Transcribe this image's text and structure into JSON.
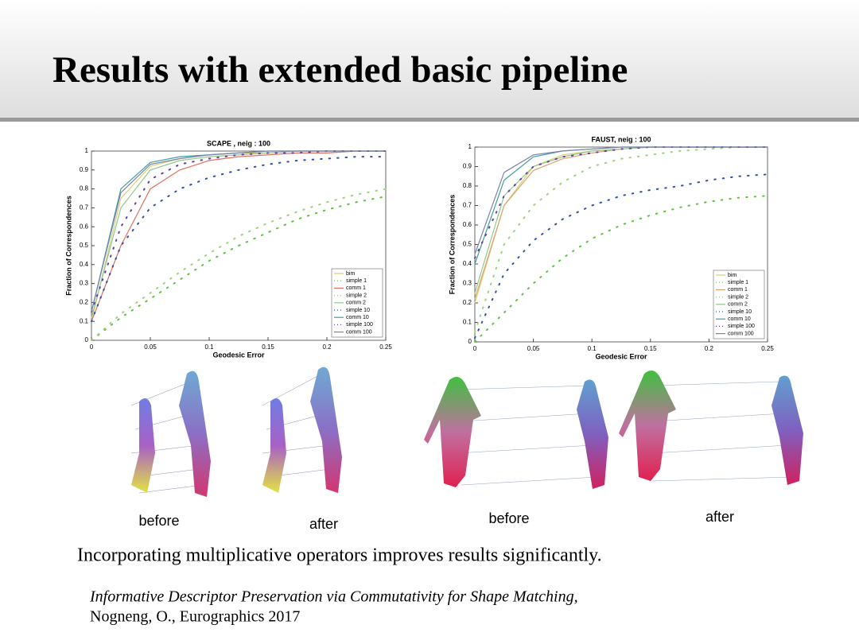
{
  "title": "Results with extended basic pipeline",
  "chart_data": [
    {
      "type": "line",
      "title": "SCAPE , neig : 100",
      "x_label": "Geodesic Error",
      "y_label": "Fraction of Correspondences",
      "x": [
        0,
        0.025,
        0.05,
        0.075,
        0.1,
        0.125,
        0.15,
        0.175,
        0.2,
        0.225,
        0.25
      ],
      "xlim": [
        0,
        0.25
      ],
      "xticks": [
        0,
        0.05,
        0.1,
        0.15,
        0.2,
        0.25
      ],
      "ylim": [
        0,
        1
      ],
      "yticks": [
        0,
        0.1,
        0.2,
        0.3,
        0.4,
        0.5,
        0.6,
        0.7,
        0.8,
        0.9,
        1
      ],
      "series": [
        {
          "name": "bim",
          "color": "#d8d070",
          "style": "solid",
          "values": [
            0.1,
            0.75,
            0.92,
            0.96,
            0.98,
            0.99,
            0.99,
            1,
            1,
            1,
            1
          ]
        },
        {
          "name": "simple 1",
          "color": "#60c040",
          "style": "dotted",
          "values": [
            0,
            0.12,
            0.22,
            0.32,
            0.42,
            0.5,
            0.57,
            0.64,
            0.69,
            0.73,
            0.76
          ]
        },
        {
          "name": "comm 1",
          "color": "#e07060",
          "style": "solid",
          "values": [
            0.1,
            0.5,
            0.8,
            0.9,
            0.95,
            0.97,
            0.98,
            0.99,
            0.99,
            1,
            1
          ]
        },
        {
          "name": "simple 2",
          "color": "#a0d080",
          "style": "dotted",
          "values": [
            0,
            0.14,
            0.25,
            0.36,
            0.46,
            0.55,
            0.62,
            0.68,
            0.73,
            0.77,
            0.8
          ]
        },
        {
          "name": "comm 2",
          "color": "#90c890",
          "style": "solid",
          "values": [
            0.12,
            0.7,
            0.9,
            0.95,
            0.97,
            0.98,
            0.99,
            1,
            1,
            1,
            1
          ]
        },
        {
          "name": "simple 10",
          "color": "#3050a0",
          "style": "dotted",
          "values": [
            0.1,
            0.5,
            0.7,
            0.8,
            0.86,
            0.9,
            0.93,
            0.95,
            0.96,
            0.97,
            0.97
          ]
        },
        {
          "name": "comm 10",
          "color": "#40a0a0",
          "style": "solid",
          "values": [
            0.15,
            0.8,
            0.94,
            0.97,
            0.98,
            0.99,
            1,
            1,
            1,
            1,
            1
          ]
        },
        {
          "name": "simple 100",
          "color": "#6040a0",
          "style": "dotted",
          "values": [
            0.15,
            0.6,
            0.85,
            0.93,
            0.96,
            0.98,
            0.99,
            0.99,
            1,
            1,
            1
          ]
        },
        {
          "name": "comm 100",
          "color": "#8080b0",
          "style": "solid",
          "values": [
            0.15,
            0.78,
            0.93,
            0.96,
            0.98,
            0.99,
            1,
            1,
            1,
            1,
            1
          ]
        }
      ]
    },
    {
      "type": "line",
      "title": "FAUST, neig : 100",
      "x_label": "Geodesic Error",
      "y_label": "Fraction of Correspondences",
      "x": [
        0,
        0.025,
        0.05,
        0.075,
        0.1,
        0.125,
        0.15,
        0.175,
        0.2,
        0.225,
        0.25
      ],
      "xlim": [
        0,
        0.25
      ],
      "xticks": [
        0,
        0.05,
        0.1,
        0.15,
        0.2,
        0.25
      ],
      "ylim": [
        0,
        1
      ],
      "yticks": [
        0,
        0.1,
        0.2,
        0.3,
        0.4,
        0.5,
        0.6,
        0.7,
        0.8,
        0.9,
        1
      ],
      "series": [
        {
          "name": "bim",
          "color": "#d8d070",
          "style": "solid",
          "values": [
            0.2,
            0.7,
            0.9,
            0.96,
            0.98,
            0.99,
            1,
            1,
            1,
            1,
            1
          ]
        },
        {
          "name": "simple 1",
          "color": "#60c040",
          "style": "dotted",
          "values": [
            0,
            0.15,
            0.3,
            0.43,
            0.53,
            0.6,
            0.65,
            0.69,
            0.72,
            0.74,
            0.75
          ]
        },
        {
          "name": "comm 1",
          "color": "#e0a070",
          "style": "solid",
          "values": [
            0.22,
            0.7,
            0.88,
            0.94,
            0.97,
            0.99,
            1,
            1,
            1,
            1,
            1
          ]
        },
        {
          "name": "simple 2",
          "color": "#a0d080",
          "style": "dotted",
          "values": [
            0.05,
            0.5,
            0.7,
            0.82,
            0.9,
            0.94,
            0.96,
            0.98,
            0.99,
            1,
            1
          ]
        },
        {
          "name": "comm 2",
          "color": "#90c890",
          "style": "solid",
          "values": [
            0.25,
            0.75,
            0.9,
            0.95,
            0.98,
            0.99,
            1,
            1,
            1,
            1,
            1
          ]
        },
        {
          "name": "simple 10",
          "color": "#3050a0",
          "style": "dotted",
          "values": [
            0.02,
            0.35,
            0.52,
            0.63,
            0.7,
            0.75,
            0.78,
            0.8,
            0.83,
            0.85,
            0.86
          ]
        },
        {
          "name": "comm 10",
          "color": "#40a0a0",
          "style": "solid",
          "values": [
            0.4,
            0.83,
            0.95,
            0.98,
            0.99,
            1,
            1,
            1,
            1,
            1,
            1
          ]
        },
        {
          "name": "simple 100",
          "color": "#6040a0",
          "style": "dotted",
          "values": [
            0.43,
            0.75,
            0.9,
            0.95,
            0.97,
            0.99,
            1,
            1,
            1,
            1,
            1
          ]
        },
        {
          "name": "comm 100",
          "color": "#8080b0",
          "style": "solid",
          "values": [
            0.45,
            0.87,
            0.96,
            0.98,
            0.99,
            1,
            1,
            1,
            1,
            1,
            1
          ]
        }
      ]
    }
  ],
  "captions": [
    "before",
    "after",
    "before",
    "after"
  ],
  "body": "Incorporating  multiplicative operators improves results significantly.",
  "citation": {
    "paper": "Informative  Descriptor  Preservation  via  Commutativity  for  Shape Matching,",
    "authors": "Nogneng, O., Eurographics 2017"
  }
}
